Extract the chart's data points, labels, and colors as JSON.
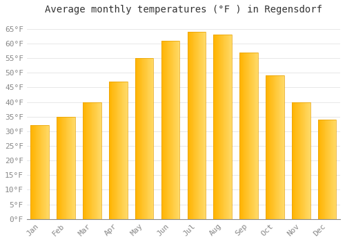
{
  "title": "Average monthly temperatures (°F ) in Regensdorf",
  "months": [
    "Jan",
    "Feb",
    "Mar",
    "Apr",
    "May",
    "Jun",
    "Jul",
    "Aug",
    "Sep",
    "Oct",
    "Nov",
    "Dec"
  ],
  "values": [
    32,
    35,
    40,
    47,
    55,
    61,
    64,
    63,
    57,
    49,
    40,
    34
  ],
  "bar_color_left": "#FFB300",
  "bar_color_right": "#FFD966",
  "bar_edge_color": "#E8A000",
  "background_color": "#FFFFFF",
  "plot_area_color": "#FFFFFF",
  "grid_color": "#DDDDDD",
  "title_fontsize": 10,
  "tick_fontsize": 8,
  "ylim": [
    0,
    68
  ],
  "ytick_step": 5
}
